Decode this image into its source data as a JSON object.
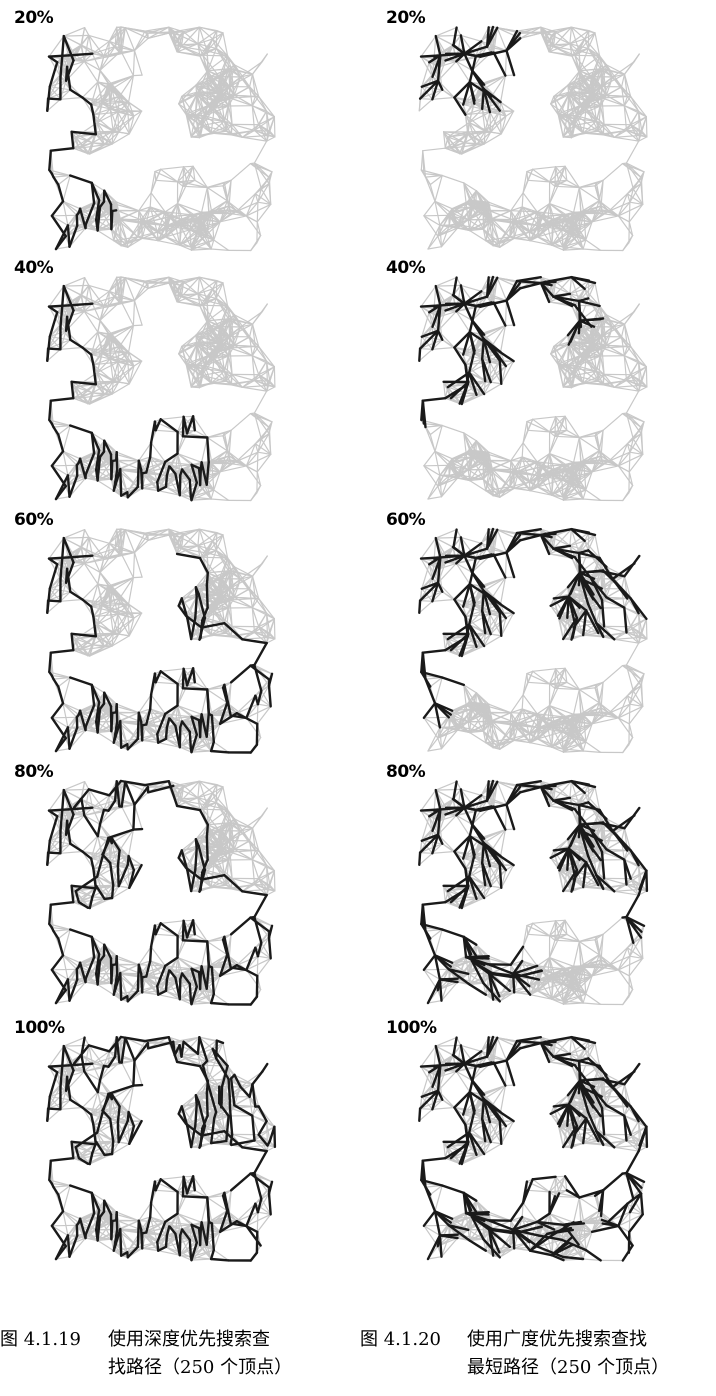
{
  "left_column": {
    "panels": [
      {
        "label": "20%",
        "progress": 0.2
      },
      {
        "label": "40%",
        "progress": 0.4
      },
      {
        "label": "60%",
        "progress": 0.6
      },
      {
        "label": "80%",
        "progress": 0.8
      },
      {
        "label": "100%",
        "progress": 1.0
      }
    ],
    "caption": {
      "number": "图 4.1.19",
      "line1": "使用深度优先搜索查",
      "line2": "找路径（250 个顶点）"
    }
  },
  "right_column": {
    "panels": [
      {
        "label": "20%",
        "progress": 0.2
      },
      {
        "label": "40%",
        "progress": 0.4
      },
      {
        "label": "60%",
        "progress": 0.6
      },
      {
        "label": "80%",
        "progress": 0.8
      },
      {
        "label": "100%",
        "progress": 1.0
      }
    ],
    "caption": {
      "number": "图 4.1.20",
      "line1": "使用广度优先搜索查找",
      "line2": "最短路径（250 个顶点）"
    }
  },
  "colors": {
    "graph_edges": "#c8c8c8",
    "search_edges": "#1a1a1a",
    "background": "#ffffff"
  }
}
